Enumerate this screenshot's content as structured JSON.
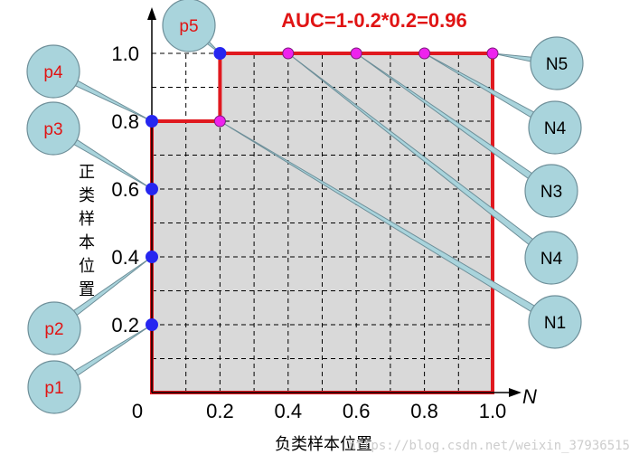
{
  "chart_data": {
    "type": "line",
    "title": "AUC=1-0.2*0.2=0.96",
    "xlabel": "负类样本位置",
    "ylabel": "正类样本位置",
    "x_axis_symbol": "N",
    "x_ticks": [
      "0",
      "0.2",
      "0.4",
      "0.6",
      "0.8",
      "1.0"
    ],
    "y_ticks": [
      "0.2",
      "0.4",
      "0.6",
      "0.8",
      "1.0"
    ],
    "xlim": [
      0,
      1
    ],
    "ylim": [
      0,
      1
    ],
    "grid": true,
    "step_curve": [
      [
        0,
        0
      ],
      [
        0,
        0.8
      ],
      [
        0.2,
        0.8
      ],
      [
        0.2,
        1.0
      ],
      [
        1.0,
        1.0
      ],
      [
        1.0,
        0
      ]
    ],
    "points": [
      {
        "label": "p1",
        "x": 0,
        "y": 0.2,
        "kind": "positive"
      },
      {
        "label": "p2",
        "x": 0,
        "y": 0.4,
        "kind": "positive"
      },
      {
        "label": "p3",
        "x": 0,
        "y": 0.6,
        "kind": "positive"
      },
      {
        "label": "p4",
        "x": 0,
        "y": 0.8,
        "kind": "positive"
      },
      {
        "label": "N1",
        "x": 0.2,
        "y": 0.8,
        "kind": "negative"
      },
      {
        "label": "p5",
        "x": 0.2,
        "y": 1.0,
        "kind": "positive"
      },
      {
        "label": "N4",
        "x": 0.4,
        "y": 1.0,
        "kind": "negative"
      },
      {
        "label": "N3",
        "x": 0.6,
        "y": 1.0,
        "kind": "negative"
      },
      {
        "label": "N4",
        "x": 0.8,
        "y": 1.0,
        "kind": "negative"
      },
      {
        "label": "N5",
        "x": 1.0,
        "y": 1.0,
        "kind": "negative"
      }
    ]
  },
  "watermark": "https://blog.csdn.net/weixin_37936515",
  "colors": {
    "curve": "#e0191f",
    "fill": "#d9d9d9",
    "positive": "#2626f0",
    "negative": "#ee22ee",
    "callout": "#a9d4dc",
    "callout_stroke": "#6e8f99",
    "title": "#e01414"
  }
}
